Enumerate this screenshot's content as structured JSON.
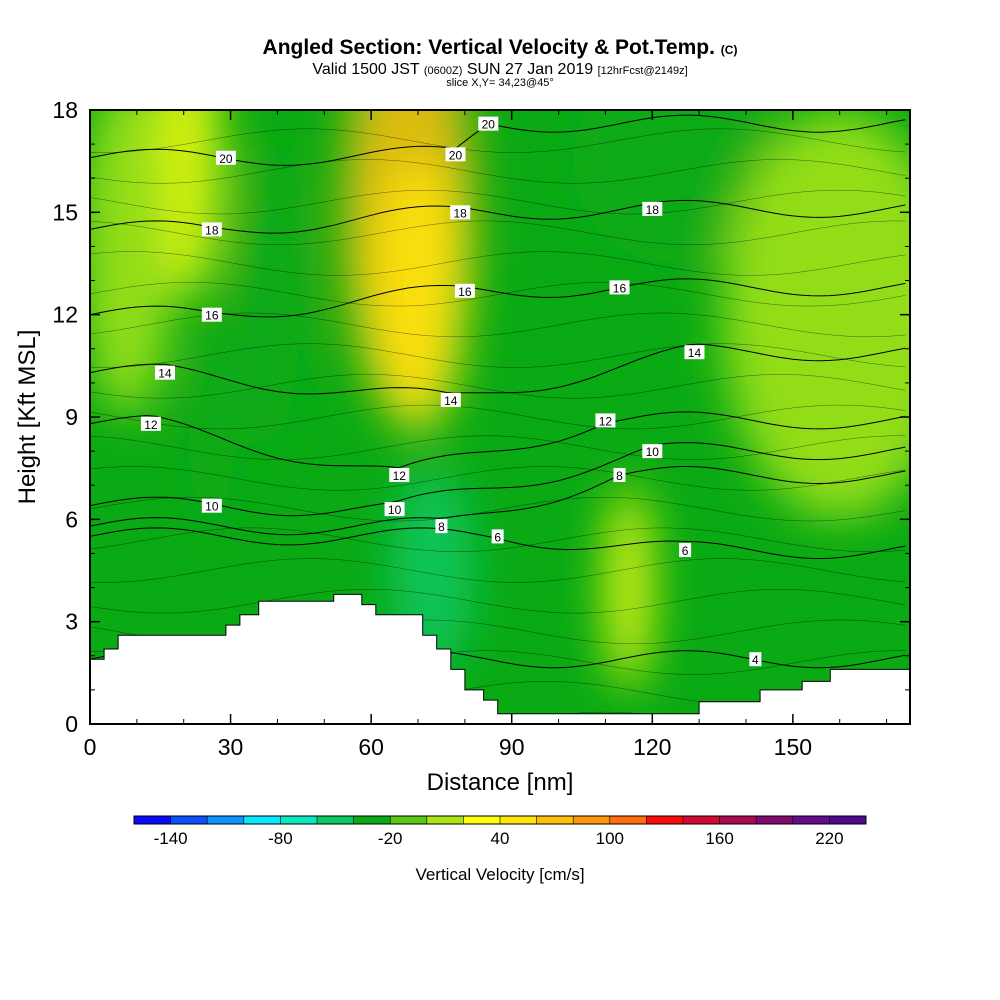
{
  "title": {
    "main": "Angled Section: Vertical Velocity & Pot.Temp.",
    "unit": "(C)",
    "valid_a": "Valid 1500 JST",
    "valid_z": "(0600Z)",
    "valid_b": "SUN 27 Jan 2019",
    "fcst": "[12hrFcst@2149z]",
    "slice": "slice X,Y= 34,23@45°"
  },
  "chart_data": {
    "type": "heatmap",
    "xlabel": "Distance [nm]",
    "ylabel": "Height [Kft MSL]",
    "xlim": [
      0,
      175
    ],
    "ylim": [
      0,
      18
    ],
    "x_ticks": [
      0,
      30,
      60,
      90,
      120,
      150
    ],
    "y_ticks": [
      0,
      3,
      6,
      9,
      12,
      15,
      18
    ],
    "colorbar": {
      "label": "Vertical Velocity [cm/s]",
      "tick_labels": [
        "-140",
        "-80",
        "-20",
        "40",
        "100",
        "160",
        "220"
      ],
      "tick_values": [
        -140,
        -80,
        -20,
        40,
        100,
        160,
        220
      ],
      "min": -160,
      "max": 240,
      "step": 20,
      "colors": [
        "#0a0aff",
        "#0a50ff",
        "#0a96ff",
        "#0ae6ff",
        "#0ae6be",
        "#0ac864",
        "#0aaa14",
        "#5ac814",
        "#aae614",
        "#ffff0a",
        "#ffe60a",
        "#ffbe0a",
        "#ff960a",
        "#ff6e0a",
        "#ff0a0a",
        "#d20a32",
        "#aa0a50",
        "#820a6e",
        "#640a8c",
        "#50088c"
      ]
    },
    "velocity_fields": [
      {
        "x_center": 21,
        "y_center": 16.5,
        "x_width": 7,
        "y_width": 4,
        "value": 38
      },
      {
        "x_center": 68,
        "y_center": 15,
        "x_width": 14,
        "y_width": 6,
        "value": 70
      },
      {
        "x_center": 70,
        "y_center": 12.5,
        "x_width": 10,
        "y_width": 4,
        "value": 45
      },
      {
        "x_center": 38,
        "y_center": 12.5,
        "x_width": 7,
        "y_width": 4.5,
        "value": -40
      },
      {
        "x_center": 26,
        "y_center": 8.5,
        "x_width": 5,
        "y_width": 3,
        "value": -40
      },
      {
        "x_center": 73,
        "y_center": 4.5,
        "x_width": 9,
        "y_width": 3,
        "value": -55
      },
      {
        "x_center": 125,
        "y_center": 16.5,
        "x_width": 22,
        "y_width": 3,
        "value": -35
      },
      {
        "x_center": 115,
        "y_center": 4,
        "x_width": 5,
        "y_width": 3,
        "value": 30
      },
      {
        "x_center": 160,
        "y_center": 12,
        "x_width": 25,
        "y_width": 6,
        "value": 15
      },
      {
        "x_center": 8,
        "y_center": 14,
        "x_width": 10,
        "y_width": 5,
        "value": 18
      }
    ],
    "pot_temp_contours": {
      "levels": [
        4,
        6,
        8,
        10,
        12,
        14,
        16,
        18,
        20
      ],
      "labels": [
        {
          "text": "20",
          "x": 29,
          "y": 16.6
        },
        {
          "text": "20",
          "x": 78,
          "y": 16.7
        },
        {
          "text": "20",
          "x": 85,
          "y": 17.6
        },
        {
          "text": "18",
          "x": 26,
          "y": 14.5
        },
        {
          "text": "18",
          "x": 79,
          "y": 15.0
        },
        {
          "text": "18",
          "x": 120,
          "y": 15.1
        },
        {
          "text": "16",
          "x": 26,
          "y": 12.0
        },
        {
          "text": "16",
          "x": 80,
          "y": 12.7
        },
        {
          "text": "16",
          "x": 113,
          "y": 12.8
        },
        {
          "text": "14",
          "x": 16,
          "y": 10.3
        },
        {
          "text": "14",
          "x": 77,
          "y": 9.5
        },
        {
          "text": "14",
          "x": 129,
          "y": 10.9
        },
        {
          "text": "12",
          "x": 13,
          "y": 8.8
        },
        {
          "text": "12",
          "x": 66,
          "y": 7.3
        },
        {
          "text": "12",
          "x": 110,
          "y": 8.9
        },
        {
          "text": "10",
          "x": 26,
          "y": 6.4
        },
        {
          "text": "10",
          "x": 65,
          "y": 6.3
        },
        {
          "text": "10",
          "x": 120,
          "y": 8.0
        },
        {
          "text": "8",
          "x": 75,
          "y": 5.8
        },
        {
          "text": "8",
          "x": 113,
          "y": 7.3
        },
        {
          "text": "6",
          "x": 87,
          "y": 5.5
        },
        {
          "text": "6",
          "x": 127,
          "y": 5.1
        },
        {
          "text": "4",
          "x": 142,
          "y": 1.9
        }
      ]
    },
    "terrain": [
      [
        0,
        1.9
      ],
      [
        3,
        1.9
      ],
      [
        3,
        2.2
      ],
      [
        6,
        2.2
      ],
      [
        6,
        2.6
      ],
      [
        29,
        2.6
      ],
      [
        29,
        2.9
      ],
      [
        32,
        2.9
      ],
      [
        32,
        3.2
      ],
      [
        36,
        3.2
      ],
      [
        36,
        3.6
      ],
      [
        52,
        3.6
      ],
      [
        52,
        3.8
      ],
      [
        58,
        3.8
      ],
      [
        58,
        3.5
      ],
      [
        61,
        3.5
      ],
      [
        61,
        3.2
      ],
      [
        71,
        3.2
      ],
      [
        71,
        2.6
      ],
      [
        74,
        2.6
      ],
      [
        74,
        2.2
      ],
      [
        77,
        2.2
      ],
      [
        77,
        1.6
      ],
      [
        80,
        1.6
      ],
      [
        80,
        1.0
      ],
      [
        84,
        1.0
      ],
      [
        84,
        0.7
      ],
      [
        87,
        0.7
      ],
      [
        87,
        0.3
      ],
      [
        130,
        0.3
      ],
      [
        130,
        0.65
      ],
      [
        143,
        0.65
      ],
      [
        143,
        1.0
      ],
      [
        152,
        1.0
      ],
      [
        152,
        1.25
      ],
      [
        158,
        1.25
      ],
      [
        158,
        1.6
      ],
      [
        175,
        1.6
      ]
    ]
  }
}
